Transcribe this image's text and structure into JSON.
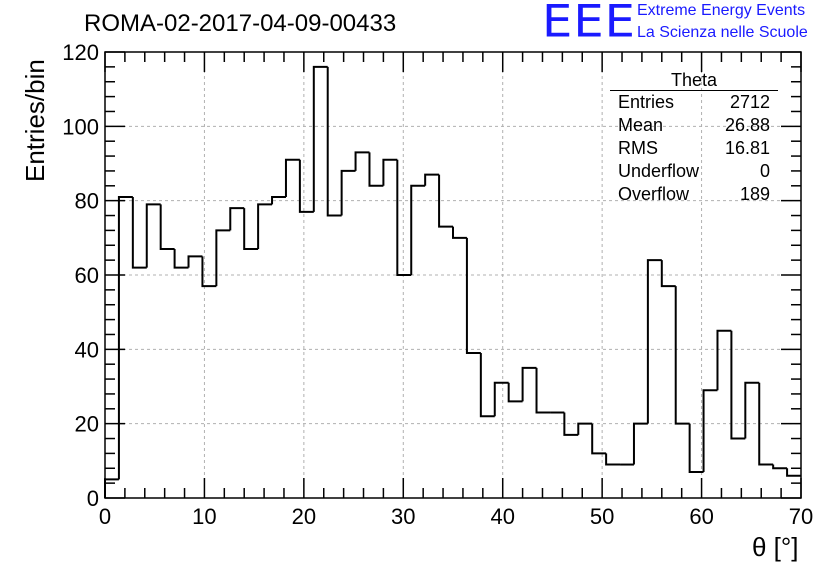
{
  "header": {
    "title": "ROMA-02-2017-04-09-00433",
    "logo_text": "EEE",
    "logo_line1": "Extreme Energy Events",
    "logo_line2": "La Scienza nelle Scuole",
    "logo_color": "#1a1aff"
  },
  "stats_box": {
    "title": "Theta",
    "rows": [
      {
        "label": "Entries",
        "value": "2712"
      },
      {
        "label": "Mean",
        "value": "26.88"
      },
      {
        "label": "RMS",
        "value": "16.81"
      },
      {
        "label": "Underflow",
        "value": "0"
      },
      {
        "label": "Overflow",
        "value": "189"
      }
    ]
  },
  "chart_data": {
    "type": "bar",
    "style": "step-histogram",
    "title": "ROMA-02-2017-04-09-00433",
    "xlabel": "θ [°]",
    "ylabel": "Entries/bin",
    "xlim": [
      0,
      70
    ],
    "ylim": [
      0,
      120
    ],
    "bin_width": 1.4,
    "x_ticks": [
      "0",
      "10",
      "20",
      "30",
      "40",
      "50",
      "60",
      "70"
    ],
    "y_ticks": [
      "0",
      "20",
      "40",
      "60",
      "80",
      "100",
      "120"
    ],
    "grid": true,
    "line_color": "#000000",
    "values": [
      5,
      81,
      62,
      79,
      67,
      62,
      65,
      57,
      72,
      78,
      67,
      79,
      81,
      91,
      77,
      116,
      76,
      88,
      93,
      84,
      91,
      60,
      84,
      87,
      73,
      70,
      39,
      22,
      31,
      26,
      35,
      23,
      23,
      17,
      20,
      12,
      9,
      9,
      20,
      64,
      57,
      20,
      7,
      29,
      45,
      16,
      31,
      9,
      8,
      6
    ]
  }
}
